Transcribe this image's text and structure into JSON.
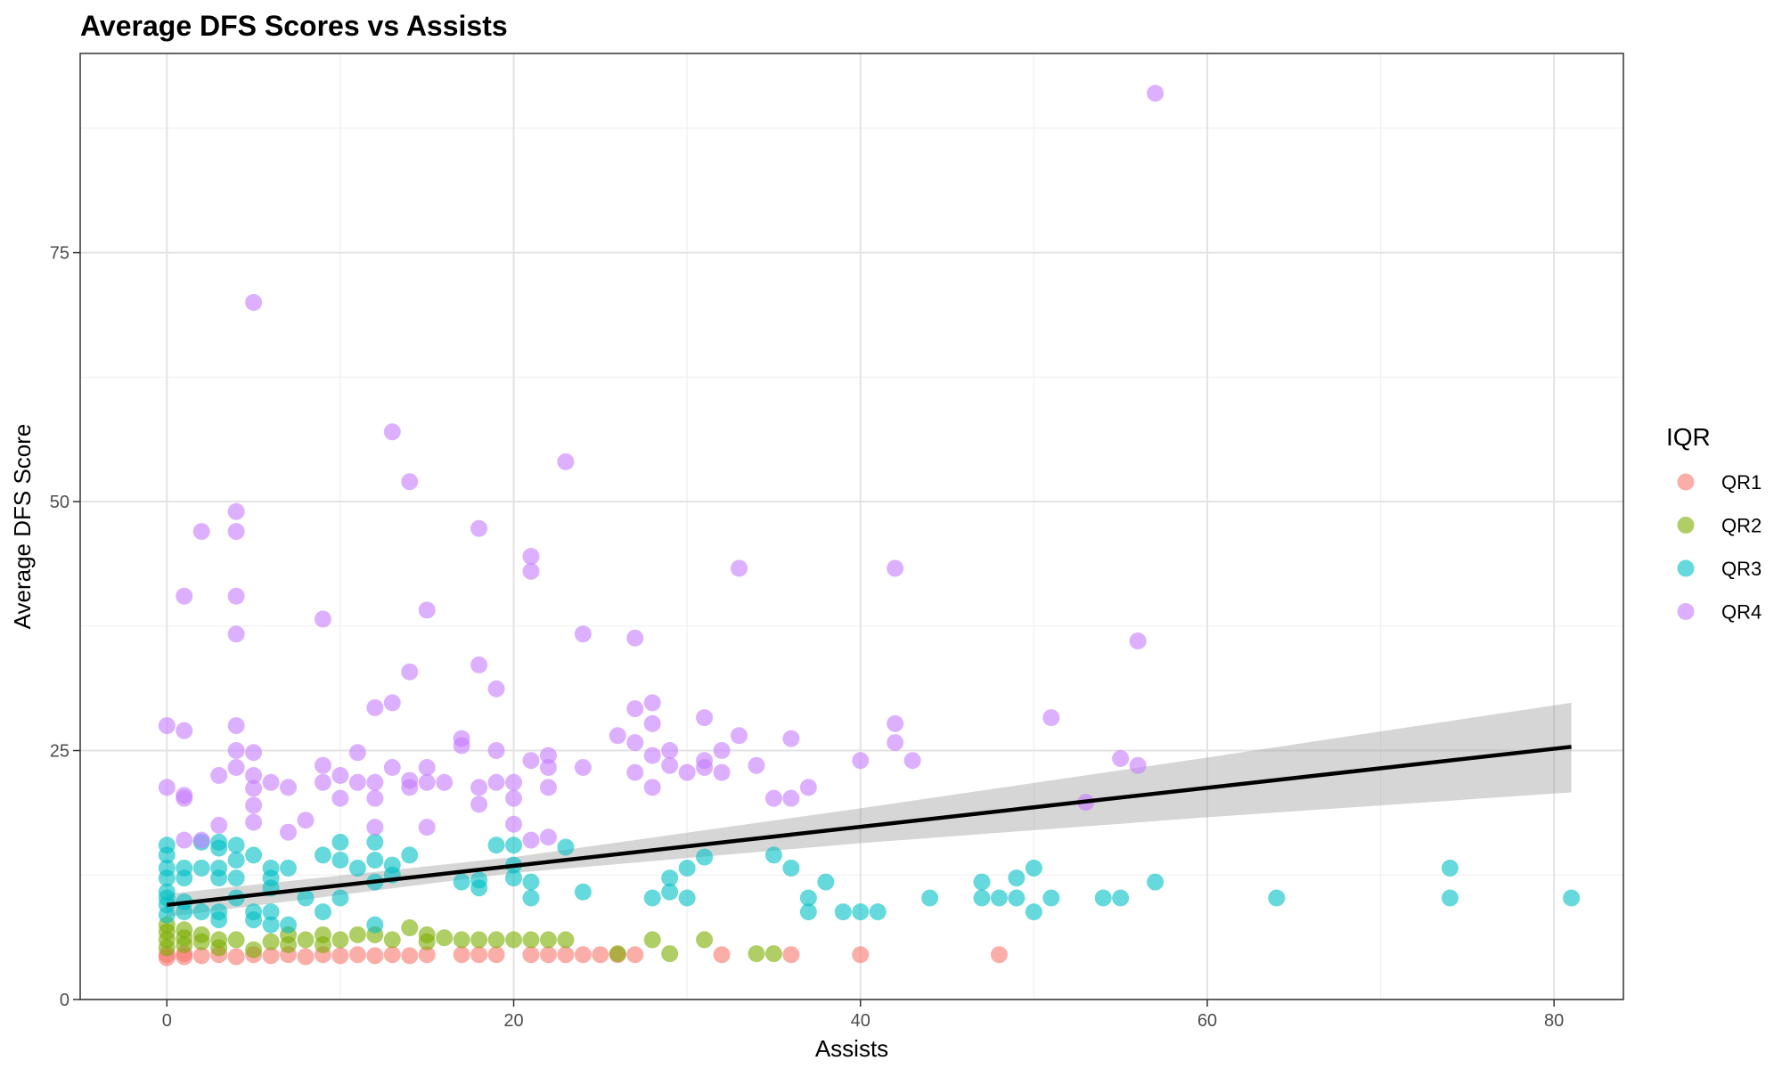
{
  "chart_data": {
    "type": "scatter",
    "title": "Average DFS Scores vs Assists",
    "xlabel": "Assists",
    "ylabel": "Average DFS Score",
    "xlim": [
      -5,
      84
    ],
    "ylim": [
      0,
      95
    ],
    "x_ticks": [
      0,
      20,
      40,
      60,
      80
    ],
    "y_ticks": [
      0,
      25,
      50,
      75
    ],
    "grid": true,
    "legend": {
      "title": "IQR",
      "position": "right"
    },
    "colors": {
      "QR1": "#F8766D",
      "QR2": "#7CAE00",
      "QR3": "#00BFC4",
      "QR4": "#C77CFF"
    },
    "series": [
      {
        "name": "QR1",
        "points": [
          [
            0,
            4.2
          ],
          [
            0,
            4.5
          ],
          [
            1,
            4.3
          ],
          [
            1,
            4.6
          ],
          [
            2,
            4.4
          ],
          [
            3,
            4.5
          ],
          [
            4,
            4.3
          ],
          [
            5,
            4.5
          ],
          [
            6,
            4.4
          ],
          [
            7,
            4.5
          ],
          [
            8,
            4.3
          ],
          [
            9,
            4.5
          ],
          [
            10,
            4.4
          ],
          [
            11,
            4.5
          ],
          [
            12,
            4.4
          ],
          [
            13,
            4.5
          ],
          [
            14,
            4.4
          ],
          [
            15,
            4.5
          ],
          [
            17,
            4.5
          ],
          [
            18,
            4.5
          ],
          [
            19,
            4.5
          ],
          [
            21,
            4.5
          ],
          [
            22,
            4.5
          ],
          [
            23,
            4.5
          ],
          [
            24,
            4.5
          ],
          [
            25,
            4.5
          ],
          [
            26,
            4.5
          ],
          [
            27,
            4.5
          ],
          [
            32,
            4.5
          ],
          [
            36,
            4.5
          ],
          [
            40,
            4.5
          ],
          [
            48,
            4.5
          ]
        ]
      },
      {
        "name": "QR2",
        "points": [
          [
            0,
            5.2
          ],
          [
            0,
            6.0
          ],
          [
            0,
            6.8
          ],
          [
            0,
            7.5
          ],
          [
            1,
            5.5
          ],
          [
            1,
            6.2
          ],
          [
            1,
            7.0
          ],
          [
            2,
            5.8
          ],
          [
            2,
            6.5
          ],
          [
            3,
            6.0
          ],
          [
            3,
            5.2
          ],
          [
            4,
            6.0
          ],
          [
            5,
            5.0
          ],
          [
            6,
            5.8
          ],
          [
            7,
            6.5
          ],
          [
            7,
            5.5
          ],
          [
            8,
            6.0
          ],
          [
            9,
            5.5
          ],
          [
            9,
            6.5
          ],
          [
            10,
            6.0
          ],
          [
            11,
            6.5
          ],
          [
            12,
            6.5
          ],
          [
            13,
            6.0
          ],
          [
            14,
            7.2
          ],
          [
            15,
            6.5
          ],
          [
            15,
            5.8
          ],
          [
            16,
            6.2
          ],
          [
            17,
            6.0
          ],
          [
            18,
            6.0
          ],
          [
            19,
            6.0
          ],
          [
            20,
            6.0
          ],
          [
            21,
            6.0
          ],
          [
            22,
            6.0
          ],
          [
            23,
            6.0
          ],
          [
            26,
            4.6
          ],
          [
            28,
            6.0
          ],
          [
            29,
            4.6
          ],
          [
            31,
            6.0
          ],
          [
            34,
            4.6
          ],
          [
            35,
            4.6
          ]
        ]
      },
      {
        "name": "QR3",
        "points": [
          [
            0,
            15.5
          ],
          [
            0,
            14.5
          ],
          [
            0,
            13.2
          ],
          [
            0,
            12.2
          ],
          [
            0,
            10.8
          ],
          [
            0,
            10.2
          ],
          [
            0,
            9.5
          ],
          [
            0,
            8.5
          ],
          [
            1,
            13.2
          ],
          [
            1,
            12.2
          ],
          [
            1,
            9.8
          ],
          [
            1,
            8.8
          ],
          [
            2,
            15.8
          ],
          [
            2,
            13.2
          ],
          [
            2,
            8.8
          ],
          [
            3,
            15.8
          ],
          [
            3,
            15.2
          ],
          [
            3,
            13.2
          ],
          [
            3,
            12.2
          ],
          [
            3,
            8.8
          ],
          [
            3,
            8.0
          ],
          [
            4,
            15.5
          ],
          [
            4,
            14.0
          ],
          [
            4,
            12.2
          ],
          [
            4,
            10.2
          ],
          [
            5,
            14.5
          ],
          [
            5,
            8.8
          ],
          [
            5,
            8.0
          ],
          [
            6,
            13.2
          ],
          [
            6,
            12.2
          ],
          [
            6,
            11.2
          ],
          [
            6,
            8.8
          ],
          [
            6,
            7.5
          ],
          [
            7,
            13.2
          ],
          [
            7,
            7.5
          ],
          [
            8,
            10.2
          ],
          [
            9,
            14.5
          ],
          [
            9,
            8.8
          ],
          [
            10,
            15.8
          ],
          [
            10,
            14.0
          ],
          [
            10,
            10.2
          ],
          [
            11,
            13.2
          ],
          [
            12,
            15.8
          ],
          [
            12,
            14.0
          ],
          [
            12,
            11.8
          ],
          [
            12,
            7.5
          ],
          [
            13,
            13.5
          ],
          [
            13,
            12.5
          ],
          [
            14,
            14.5
          ],
          [
            17,
            11.8
          ],
          [
            18,
            12.0
          ],
          [
            18,
            11.2
          ],
          [
            19,
            15.5
          ],
          [
            20,
            15.5
          ],
          [
            20,
            13.5
          ],
          [
            20,
            12.2
          ],
          [
            21,
            11.8
          ],
          [
            21,
            10.2
          ],
          [
            23,
            15.3
          ],
          [
            24,
            10.8
          ],
          [
            28,
            10.2
          ],
          [
            29,
            12.2
          ],
          [
            29,
            10.8
          ],
          [
            30,
            13.2
          ],
          [
            30,
            10.2
          ],
          [
            31,
            14.3
          ],
          [
            35,
            14.5
          ],
          [
            36,
            13.2
          ],
          [
            37,
            10.2
          ],
          [
            37,
            8.8
          ],
          [
            38,
            11.8
          ],
          [
            39,
            8.8
          ],
          [
            40,
            8.8
          ],
          [
            41,
            8.8
          ],
          [
            44,
            10.2
          ],
          [
            47,
            11.8
          ],
          [
            47,
            10.2
          ],
          [
            48,
            10.2
          ],
          [
            49,
            12.2
          ],
          [
            49,
            10.2
          ],
          [
            50,
            13.2
          ],
          [
            50,
            8.8
          ],
          [
            51,
            10.2
          ],
          [
            54,
            10.2
          ],
          [
            55,
            10.2
          ],
          [
            57,
            11.8
          ],
          [
            64,
            10.2
          ],
          [
            74,
            13.2
          ],
          [
            74,
            10.2
          ],
          [
            81,
            10.2
          ]
        ]
      },
      {
        "name": "QR4",
        "points": [
          [
            0,
            27.5
          ],
          [
            0,
            21.3
          ],
          [
            1,
            40.5
          ],
          [
            1,
            27.0
          ],
          [
            1,
            20.5
          ],
          [
            1,
            20.2
          ],
          [
            1,
            16.0
          ],
          [
            2,
            47.0
          ],
          [
            2,
            16.0
          ],
          [
            3,
            22.5
          ],
          [
            3,
            17.5
          ],
          [
            4,
            49.0
          ],
          [
            4,
            47.0
          ],
          [
            4,
            40.5
          ],
          [
            4,
            36.7
          ],
          [
            4,
            27.5
          ],
          [
            4,
            25.0
          ],
          [
            4,
            23.3
          ],
          [
            5,
            70.0
          ],
          [
            5,
            24.8
          ],
          [
            5,
            22.5
          ],
          [
            5,
            21.2
          ],
          [
            5,
            19.5
          ],
          [
            5,
            17.8
          ],
          [
            6,
            21.8
          ],
          [
            7,
            21.3
          ],
          [
            7,
            16.8
          ],
          [
            8,
            18.0
          ],
          [
            9,
            38.2
          ],
          [
            9,
            23.5
          ],
          [
            9,
            21.8
          ],
          [
            10,
            22.5
          ],
          [
            10,
            20.2
          ],
          [
            11,
            24.8
          ],
          [
            11,
            21.8
          ],
          [
            12,
            29.3
          ],
          [
            12,
            21.8
          ],
          [
            12,
            20.2
          ],
          [
            12,
            17.3
          ],
          [
            13,
            57.0
          ],
          [
            13,
            29.8
          ],
          [
            13,
            23.3
          ],
          [
            14,
            52.0
          ],
          [
            14,
            32.9
          ],
          [
            14,
            22.0
          ],
          [
            14,
            21.3
          ],
          [
            15,
            39.1
          ],
          [
            15,
            23.3
          ],
          [
            15,
            21.8
          ],
          [
            15,
            17.3
          ],
          [
            16,
            21.8
          ],
          [
            17,
            26.2
          ],
          [
            17,
            25.5
          ],
          [
            18,
            47.3
          ],
          [
            18,
            33.6
          ],
          [
            18,
            21.3
          ],
          [
            18,
            19.6
          ],
          [
            19,
            31.2
          ],
          [
            19,
            25.0
          ],
          [
            19,
            21.8
          ],
          [
            20,
            21.8
          ],
          [
            20,
            20.2
          ],
          [
            20,
            17.6
          ],
          [
            21,
            44.5
          ],
          [
            21,
            43.0
          ],
          [
            21,
            24.0
          ],
          [
            21,
            16.0
          ],
          [
            22,
            24.5
          ],
          [
            22,
            23.3
          ],
          [
            22,
            21.3
          ],
          [
            22,
            16.3
          ],
          [
            23,
            54.0
          ],
          [
            24,
            36.7
          ],
          [
            24,
            23.3
          ],
          [
            26,
            26.5
          ],
          [
            27,
            36.3
          ],
          [
            27,
            29.2
          ],
          [
            27,
            25.8
          ],
          [
            27,
            22.8
          ],
          [
            28,
            29.8
          ],
          [
            28,
            27.7
          ],
          [
            28,
            24.5
          ],
          [
            28,
            21.3
          ],
          [
            29,
            25.0
          ],
          [
            29,
            23.5
          ],
          [
            30,
            22.8
          ],
          [
            31,
            28.3
          ],
          [
            31,
            24.0
          ],
          [
            31,
            23.3
          ],
          [
            32,
            25.0
          ],
          [
            32,
            22.8
          ],
          [
            33,
            43.3
          ],
          [
            33,
            26.5
          ],
          [
            34,
            23.5
          ],
          [
            35,
            20.2
          ],
          [
            36,
            26.2
          ],
          [
            36,
            20.2
          ],
          [
            37,
            21.3
          ],
          [
            40,
            24.0
          ],
          [
            42,
            43.3
          ],
          [
            42,
            27.7
          ],
          [
            42,
            25.8
          ],
          [
            43,
            24.0
          ],
          [
            51,
            28.3
          ],
          [
            53,
            19.8
          ],
          [
            55,
            24.2
          ],
          [
            56,
            36.0
          ],
          [
            56,
            23.5
          ],
          [
            57,
            91.0
          ]
        ]
      }
    ],
    "trend": {
      "type": "linear",
      "intercept": 9.5,
      "slope": 0.196,
      "x_range": [
        0,
        81
      ],
      "ci_band": [
        [
          0,
          8.3,
          10.6
        ],
        [
          20,
          12.7,
          14.3
        ],
        [
          40,
          15.7,
          19.2
        ],
        [
          60,
          18.3,
          24.3
        ],
        [
          81,
          20.8,
          29.8
        ]
      ]
    }
  }
}
